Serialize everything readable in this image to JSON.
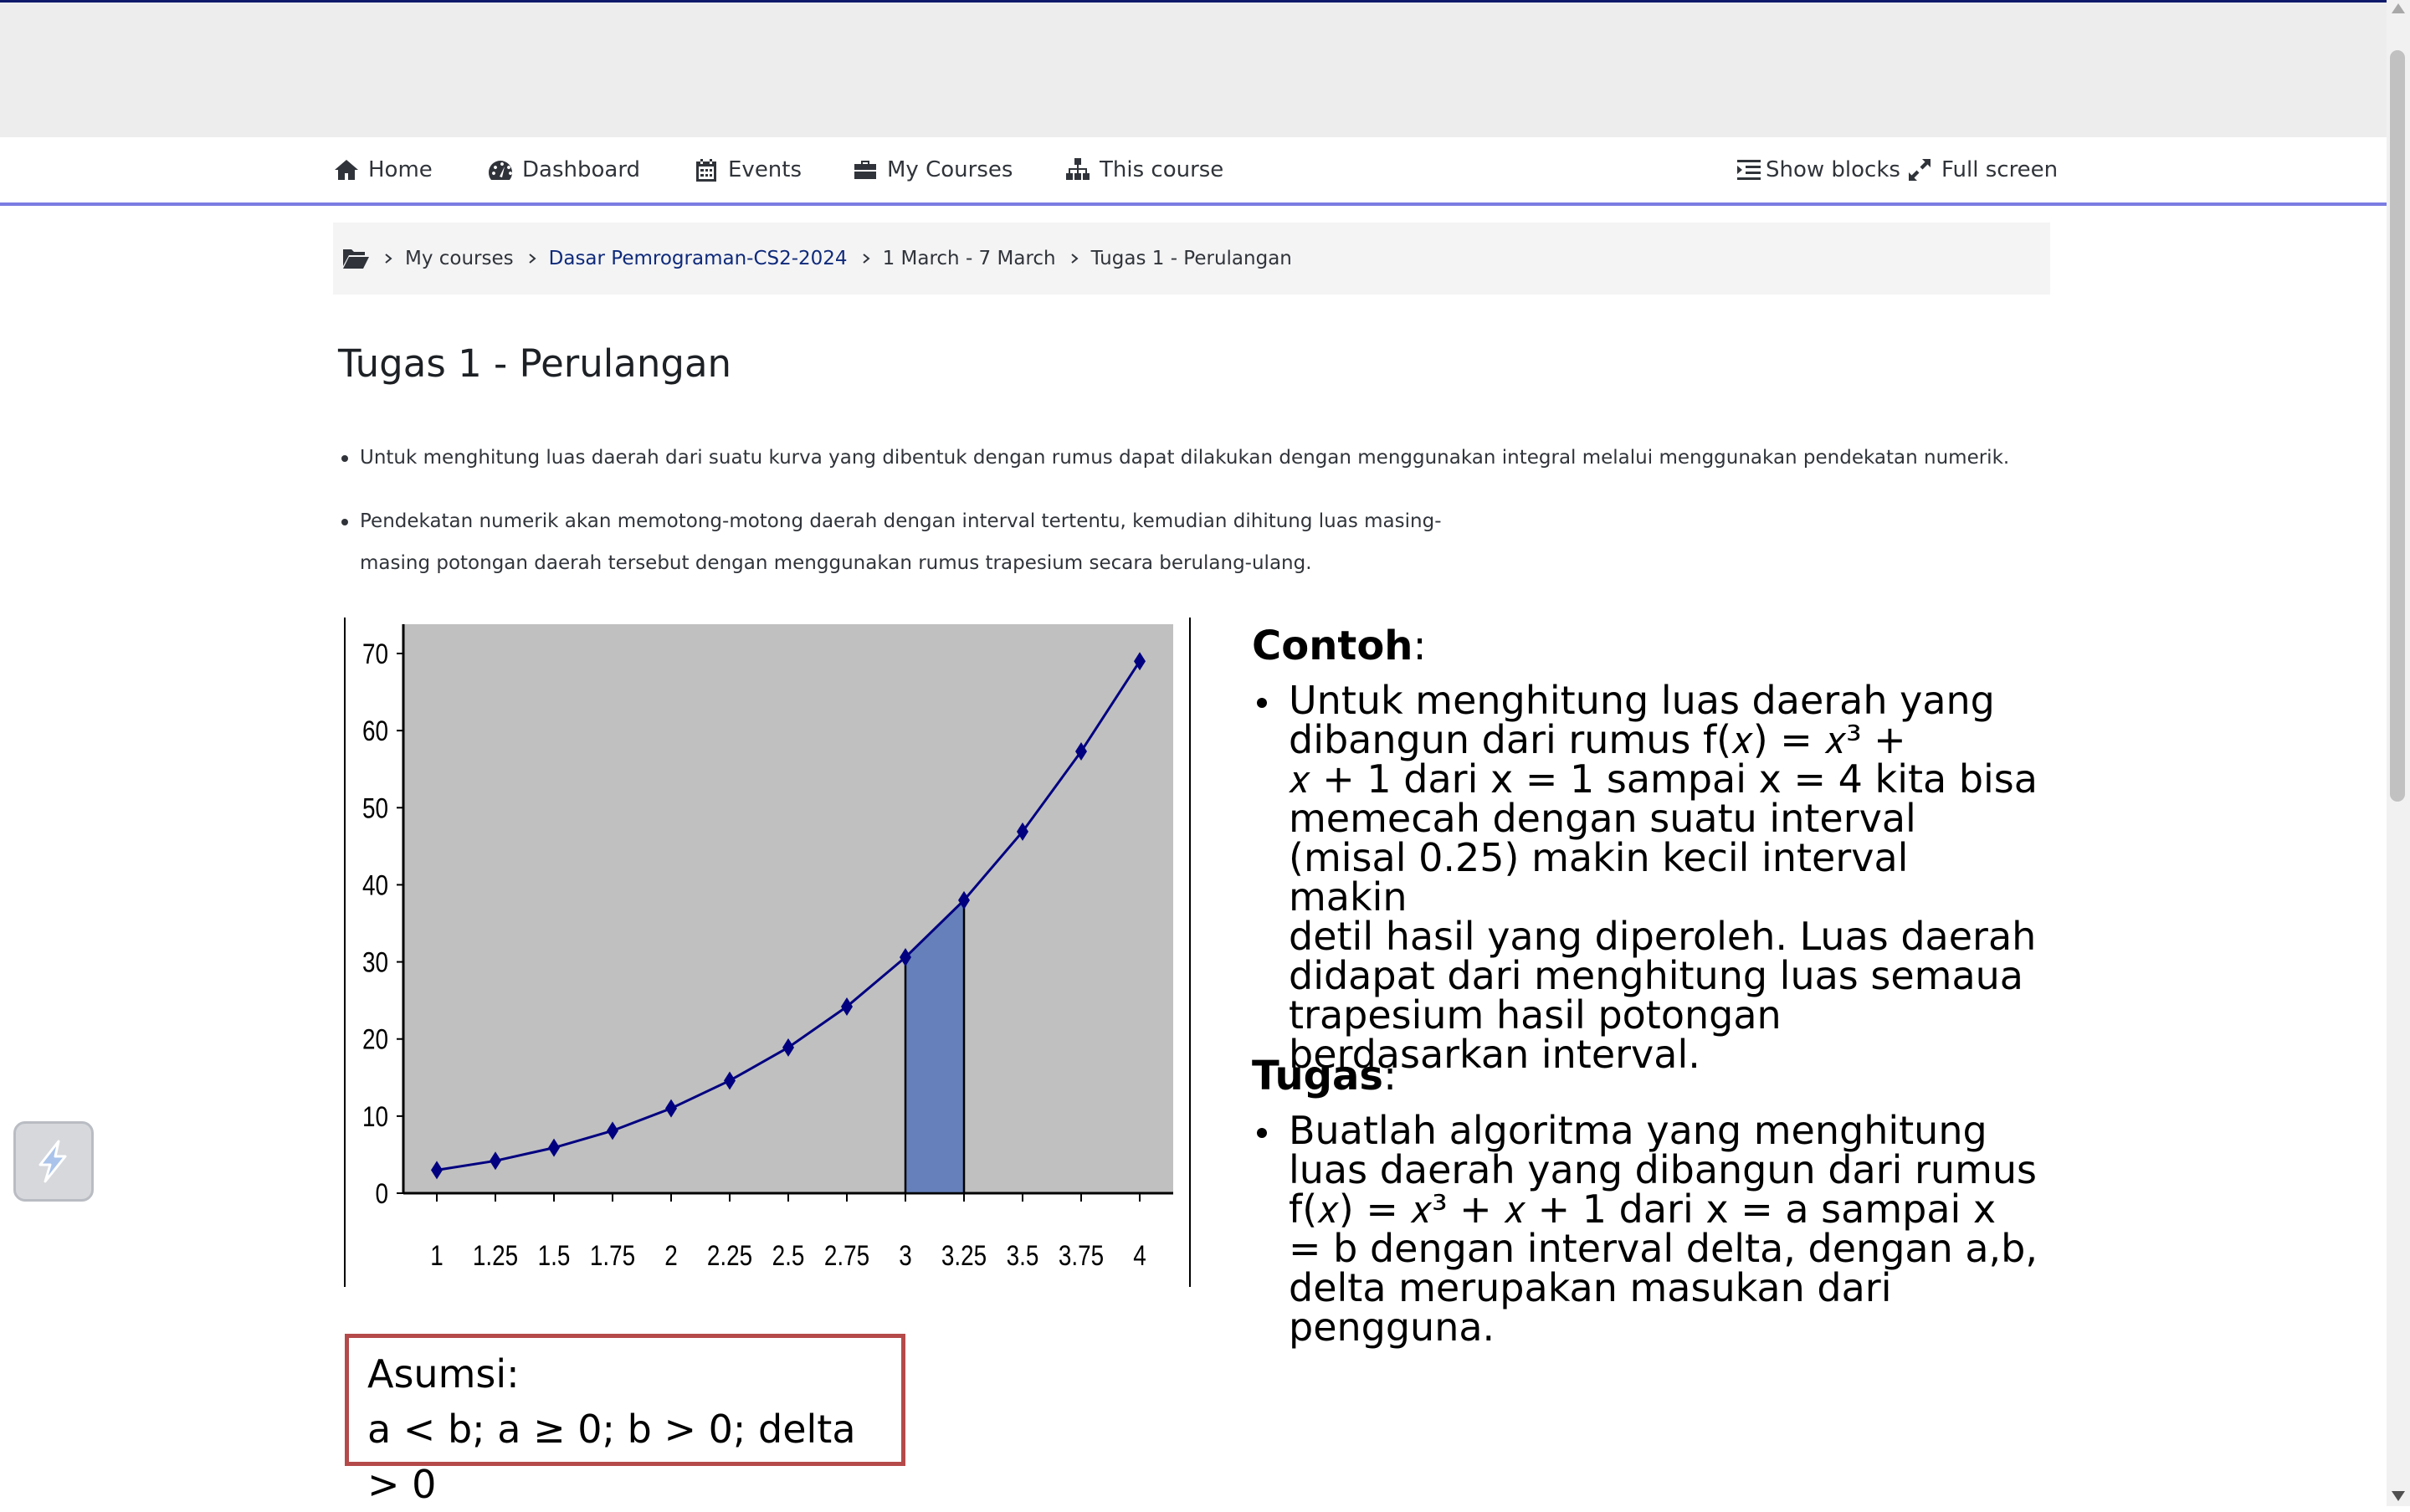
{
  "nav": {
    "items": [
      {
        "label": "Home",
        "icon": "home-icon"
      },
      {
        "label": "Dashboard",
        "icon": "dashboard-icon"
      },
      {
        "label": "Events",
        "icon": "calendar-icon"
      },
      {
        "label": "My Courses",
        "icon": "briefcase-icon"
      },
      {
        "label": "This course",
        "icon": "sitemap-icon"
      }
    ],
    "show_blocks": "Show blocks",
    "full_screen": "Full screen"
  },
  "breadcrumb": {
    "items": [
      "My courses",
      "Dasar Pemrograman-CS2-2024",
      "1 March - 7 March",
      "Tugas 1 - Perulangan"
    ]
  },
  "page": {
    "title": "Tugas 1 - Perulangan",
    "bullets": [
      "Untuk menghitung luas daerah dari suatu kurva yang dibentuk dengan rumus dapat dilakukan dengan menggunakan integral melalui menggunakan pendekatan numerik.",
      "Pendekatan numerik akan memotong-motong daerah dengan interval tertentu, kemudian dihitung luas masing-",
      "masing potongan daerah tersebut dengan menggunakan rumus trapesium secara berulang-ulang."
    ]
  },
  "example": {
    "heading_bold": "Contoh",
    "heading_rest": ":",
    "lines": [
      "Untuk menghitung luas daerah yang",
      "dibangun dari rumus f(𝑥) =  𝑥³ +",
      "𝑥 + 1 dari x = 1 sampai x = 4 kita bisa",
      "memecah dengan suatu interval",
      "(misal 0.25) makin kecil interval makin",
      "detil hasil yang diperoleh. Luas daerah",
      "didapat dari menghitung luas semaua",
      "trapesium hasil potongan",
      "berdasarkan interval."
    ]
  },
  "task": {
    "heading_bold": "Tugas",
    "heading_rest": ":",
    "lines": [
      "Buatlah algoritma yang menghitung",
      "luas daerah yang dibangun dari rumus",
      "f(𝑥) =  𝑥³ + 𝑥 + 1 dari x = a sampai x",
      "= b dengan interval delta, dengan a,b,",
      "delta merupakan masukan dari",
      "pengguna."
    ]
  },
  "assumption": {
    "title": "Asumsi:",
    "text": "a < b; a ≥ 0; b > 0; delta > 0"
  },
  "colors": {
    "plot_bg": "#c0c0c0",
    "line": "#000080",
    "highlight": "#6680bb",
    "nav_border": "#7b7be3",
    "assumption_border": "#b54a4a"
  },
  "chart_data": {
    "type": "line",
    "categories": [
      "1",
      "1.25",
      "1.5",
      "1.75",
      "2",
      "2.25",
      "2.5",
      "2.75",
      "3",
      "3.25",
      "3.5",
      "3.75",
      "4"
    ],
    "x": [
      1,
      1.25,
      1.5,
      1.75,
      2,
      2.25,
      2.5,
      2.75,
      3,
      3.25,
      3.5,
      3.75,
      4
    ],
    "series": [
      {
        "values": [
          3,
          4.2,
          5.9,
          8.1,
          11,
          14.6,
          18.9,
          24.2,
          30.6,
          38,
          46.9,
          57.3,
          69
        ]
      }
    ],
    "shaded_interval": [
      3,
      3.25
    ],
    "ylim": [
      0,
      70
    ],
    "yticks": [
      0,
      10,
      20,
      30,
      40,
      50,
      60,
      70
    ],
    "grid": false,
    "legend": "none",
    "title": "",
    "xlabel": "",
    "ylabel": ""
  }
}
